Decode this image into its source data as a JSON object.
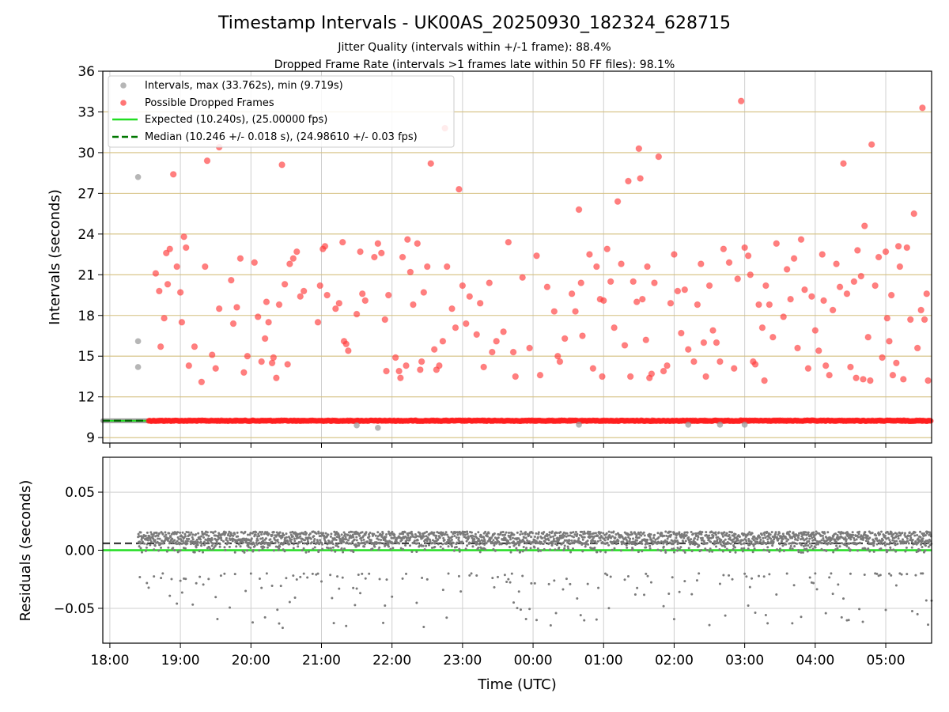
{
  "chart_data": {
    "title": "Timestamp Intervals - UK00AS_20250930_182324_628715",
    "subtitle_1": "Jitter Quality (intervals within +/-1 frame): 88.4%",
    "subtitle_2": "Dropped Frame Rate (intervals >1 frames late within 50 FF files): 98.1%",
    "xlabel": "Time (UTC)",
    "x_ticks": [
      "18:00",
      "19:00",
      "20:00",
      "21:00",
      "22:00",
      "23:00",
      "00:00",
      "01:00",
      "02:00",
      "03:00",
      "04:00",
      "05:00"
    ],
    "x_range_hours": [
      17.9,
      29.65
    ],
    "panels": [
      {
        "name": "intervals",
        "type": "scatter",
        "ylabel": "Intervals (seconds)",
        "ylim": [
          8.6,
          36
        ],
        "y_ticks": [
          "9",
          "12",
          "15",
          "18",
          "21",
          "24",
          "27",
          "30",
          "33",
          "36"
        ],
        "grid": true,
        "legend_position": "top-left",
        "legend": [
          {
            "label": "Intervals, max (33.762s), min (9.719s)",
            "kind": "marker",
            "color": "#9e9e9e"
          },
          {
            "label": "Possible Dropped Frames",
            "kind": "marker",
            "color": "#ff3b3b"
          },
          {
            "label": "Expected (10.240s), (25.00000 fps)",
            "kind": "line",
            "color": "#22dd22"
          },
          {
            "label": "Median (10.246 +/- 0.018 s), (24.98610 +/- 0.03 fps)",
            "kind": "dashed",
            "color": "#007700"
          }
        ],
        "expected_interval": 10.24,
        "median_interval": 10.246,
        "baseline_grey_hours": [
          17.9,
          18.55
        ],
        "baseline_red_hours": [
          18.55,
          29.65
        ],
        "baseline_value": 10.24,
        "gray_outliers": [
          {
            "t": 18.4,
            "y": 28.2
          },
          {
            "t": 18.4,
            "y": 16.1
          },
          {
            "t": 18.4,
            "y": 14.2
          },
          {
            "t": 21.5,
            "y": 9.9
          },
          {
            "t": 21.8,
            "y": 9.72
          },
          {
            "t": 24.65,
            "y": 9.95
          },
          {
            "t": 26.2,
            "y": 9.95
          },
          {
            "t": 26.65,
            "y": 9.95
          },
          {
            "t": 27.0,
            "y": 9.95
          }
        ],
        "red_scatter": [
          {
            "t": 18.65,
            "y": 21.1
          },
          {
            "t": 18.7,
            "y": 19.8
          },
          {
            "t": 18.72,
            "y": 15.7
          },
          {
            "t": 18.77,
            "y": 17.8
          },
          {
            "t": 18.8,
            "y": 22.6
          },
          {
            "t": 18.82,
            "y": 20.3
          },
          {
            "t": 18.85,
            "y": 22.9
          },
          {
            "t": 18.9,
            "y": 28.4
          },
          {
            "t": 18.95,
            "y": 21.6
          },
          {
            "t": 19.0,
            "y": 19.7
          },
          {
            "t": 19.02,
            "y": 17.5
          },
          {
            "t": 19.05,
            "y": 23.8
          },
          {
            "t": 19.08,
            "y": 23.0
          },
          {
            "t": 19.12,
            "y": 14.3
          },
          {
            "t": 19.2,
            "y": 15.7
          },
          {
            "t": 19.3,
            "y": 13.1
          },
          {
            "t": 19.35,
            "y": 21.6
          },
          {
            "t": 19.38,
            "y": 29.4
          },
          {
            "t": 19.45,
            "y": 15.1
          },
          {
            "t": 19.5,
            "y": 14.1
          },
          {
            "t": 19.55,
            "y": 30.4
          },
          {
            "t": 19.55,
            "y": 18.5
          },
          {
            "t": 19.72,
            "y": 20.6
          },
          {
            "t": 19.75,
            "y": 17.4
          },
          {
            "t": 19.8,
            "y": 18.6
          },
          {
            "t": 19.85,
            "y": 22.2
          },
          {
            "t": 19.9,
            "y": 13.8
          },
          {
            "t": 19.95,
            "y": 15.0
          },
          {
            "t": 20.05,
            "y": 21.9
          },
          {
            "t": 20.1,
            "y": 17.9
          },
          {
            "t": 20.15,
            "y": 14.6
          },
          {
            "t": 20.2,
            "y": 16.3
          },
          {
            "t": 20.22,
            "y": 19.0
          },
          {
            "t": 20.25,
            "y": 17.5
          },
          {
            "t": 20.3,
            "y": 14.5
          },
          {
            "t": 20.32,
            "y": 14.9
          },
          {
            "t": 20.36,
            "y": 13.4
          },
          {
            "t": 20.4,
            "y": 18.8
          },
          {
            "t": 20.44,
            "y": 29.1
          },
          {
            "t": 20.48,
            "y": 20.3
          },
          {
            "t": 20.52,
            "y": 14.4
          },
          {
            "t": 20.55,
            "y": 21.8
          },
          {
            "t": 20.6,
            "y": 22.2
          },
          {
            "t": 20.65,
            "y": 22.7
          },
          {
            "t": 20.7,
            "y": 19.4
          },
          {
            "t": 20.75,
            "y": 19.8
          },
          {
            "t": 20.95,
            "y": 17.5
          },
          {
            "t": 20.98,
            "y": 20.2
          },
          {
            "t": 21.02,
            "y": 22.9
          },
          {
            "t": 21.05,
            "y": 23.1
          },
          {
            "t": 21.08,
            "y": 19.5
          },
          {
            "t": 21.2,
            "y": 18.5
          },
          {
            "t": 21.25,
            "y": 18.9
          },
          {
            "t": 21.3,
            "y": 23.4
          },
          {
            "t": 21.32,
            "y": 16.1
          },
          {
            "t": 21.35,
            "y": 15.9
          },
          {
            "t": 21.38,
            "y": 15.4
          },
          {
            "t": 21.5,
            "y": 18.1
          },
          {
            "t": 21.55,
            "y": 22.7
          },
          {
            "t": 21.58,
            "y": 19.6
          },
          {
            "t": 21.62,
            "y": 19.1
          },
          {
            "t": 21.75,
            "y": 22.3
          },
          {
            "t": 21.8,
            "y": 23.3
          },
          {
            "t": 21.85,
            "y": 22.6
          },
          {
            "t": 21.9,
            "y": 17.7
          },
          {
            "t": 21.92,
            "y": 13.9
          },
          {
            "t": 21.95,
            "y": 19.5
          },
          {
            "t": 22.05,
            "y": 14.9
          },
          {
            "t": 22.1,
            "y": 13.9
          },
          {
            "t": 22.12,
            "y": 13.4
          },
          {
            "t": 22.15,
            "y": 22.3
          },
          {
            "t": 22.2,
            "y": 14.3
          },
          {
            "t": 22.22,
            "y": 23.6
          },
          {
            "t": 22.26,
            "y": 21.2
          },
          {
            "t": 22.3,
            "y": 18.8
          },
          {
            "t": 22.36,
            "y": 23.3
          },
          {
            "t": 22.4,
            "y": 14.0
          },
          {
            "t": 22.42,
            "y": 14.6
          },
          {
            "t": 22.45,
            "y": 19.7
          },
          {
            "t": 22.5,
            "y": 21.6
          },
          {
            "t": 22.55,
            "y": 29.2
          },
          {
            "t": 22.6,
            "y": 15.5
          },
          {
            "t": 22.63,
            "y": 14.0
          },
          {
            "t": 22.67,
            "y": 14.3
          },
          {
            "t": 22.72,
            "y": 16.1
          },
          {
            "t": 22.75,
            "y": 31.8
          },
          {
            "t": 22.78,
            "y": 21.6
          },
          {
            "t": 22.85,
            "y": 18.5
          },
          {
            "t": 22.9,
            "y": 17.1
          },
          {
            "t": 22.95,
            "y": 27.3
          },
          {
            "t": 23.0,
            "y": 20.2
          },
          {
            "t": 23.05,
            "y": 17.4
          },
          {
            "t": 23.1,
            "y": 19.4
          },
          {
            "t": 23.2,
            "y": 16.6
          },
          {
            "t": 23.25,
            "y": 18.9
          },
          {
            "t": 23.3,
            "y": 14.2
          },
          {
            "t": 23.38,
            "y": 20.4
          },
          {
            "t": 23.42,
            "y": 15.3
          },
          {
            "t": 23.48,
            "y": 16.1
          },
          {
            "t": 23.58,
            "y": 16.8
          },
          {
            "t": 23.65,
            "y": 23.4
          },
          {
            "t": 23.72,
            "y": 15.3
          },
          {
            "t": 23.75,
            "y": 13.5
          },
          {
            "t": 23.85,
            "y": 20.8
          },
          {
            "t": 23.95,
            "y": 15.6
          },
          {
            "t": 24.05,
            "y": 22.4
          },
          {
            "t": 24.1,
            "y": 13.6
          },
          {
            "t": 24.2,
            "y": 20.1
          },
          {
            "t": 24.3,
            "y": 18.3
          },
          {
            "t": 24.35,
            "y": 15.0
          },
          {
            "t": 24.38,
            "y": 14.6
          },
          {
            "t": 24.45,
            "y": 16.3
          },
          {
            "t": 24.55,
            "y": 19.6
          },
          {
            "t": 24.6,
            "y": 18.3
          },
          {
            "t": 24.65,
            "y": 25.8
          },
          {
            "t": 24.68,
            "y": 20.4
          },
          {
            "t": 24.7,
            "y": 16.5
          },
          {
            "t": 24.8,
            "y": 22.5
          },
          {
            "t": 24.85,
            "y": 14.1
          },
          {
            "t": 24.9,
            "y": 21.6
          },
          {
            "t": 24.95,
            "y": 19.2
          },
          {
            "t": 24.98,
            "y": 13.5
          },
          {
            "t": 25.0,
            "y": 19.1
          },
          {
            "t": 25.05,
            "y": 22.9
          },
          {
            "t": 25.1,
            "y": 20.5
          },
          {
            "t": 25.15,
            "y": 17.1
          },
          {
            "t": 25.2,
            "y": 26.4
          },
          {
            "t": 25.25,
            "y": 21.8
          },
          {
            "t": 25.3,
            "y": 15.8
          },
          {
            "t": 25.35,
            "y": 27.9
          },
          {
            "t": 25.38,
            "y": 13.5
          },
          {
            "t": 25.42,
            "y": 20.5
          },
          {
            "t": 25.47,
            "y": 19.0
          },
          {
            "t": 25.5,
            "y": 30.3
          },
          {
            "t": 25.52,
            "y": 28.1
          },
          {
            "t": 25.55,
            "y": 19.2
          },
          {
            "t": 25.6,
            "y": 16.2
          },
          {
            "t": 25.62,
            "y": 21.6
          },
          {
            "t": 25.65,
            "y": 13.4
          },
          {
            "t": 25.68,
            "y": 13.7
          },
          {
            "t": 25.72,
            "y": 20.4
          },
          {
            "t": 25.78,
            "y": 29.7
          },
          {
            "t": 25.85,
            "y": 13.9
          },
          {
            "t": 25.9,
            "y": 14.3
          },
          {
            "t": 25.95,
            "y": 18.9
          },
          {
            "t": 26.0,
            "y": 22.5
          },
          {
            "t": 26.05,
            "y": 19.8
          },
          {
            "t": 26.1,
            "y": 16.7
          },
          {
            "t": 26.15,
            "y": 19.9
          },
          {
            "t": 26.2,
            "y": 15.5
          },
          {
            "t": 26.28,
            "y": 14.6
          },
          {
            "t": 26.33,
            "y": 18.8
          },
          {
            "t": 26.38,
            "y": 21.8
          },
          {
            "t": 26.42,
            "y": 16.0
          },
          {
            "t": 26.45,
            "y": 13.5
          },
          {
            "t": 26.5,
            "y": 20.2
          },
          {
            "t": 26.55,
            "y": 16.9
          },
          {
            "t": 26.6,
            "y": 16.0
          },
          {
            "t": 26.65,
            "y": 14.6
          },
          {
            "t": 26.7,
            "y": 22.9
          },
          {
            "t": 26.78,
            "y": 21.9
          },
          {
            "t": 26.85,
            "y": 14.1
          },
          {
            "t": 26.9,
            "y": 20.7
          },
          {
            "t": 26.95,
            "y": 33.8
          },
          {
            "t": 27.0,
            "y": 23.0
          },
          {
            "t": 27.05,
            "y": 22.4
          },
          {
            "t": 27.08,
            "y": 21.0
          },
          {
            "t": 27.12,
            "y": 14.6
          },
          {
            "t": 27.15,
            "y": 14.4
          },
          {
            "t": 27.2,
            "y": 18.8
          },
          {
            "t": 27.25,
            "y": 17.1
          },
          {
            "t": 27.28,
            "y": 13.2
          },
          {
            "t": 27.3,
            "y": 20.2
          },
          {
            "t": 27.35,
            "y": 18.8
          },
          {
            "t": 27.4,
            "y": 16.4
          },
          {
            "t": 27.45,
            "y": 23.3
          },
          {
            "t": 27.55,
            "y": 17.9
          },
          {
            "t": 27.6,
            "y": 21.4
          },
          {
            "t": 27.65,
            "y": 19.2
          },
          {
            "t": 27.7,
            "y": 22.2
          },
          {
            "t": 27.75,
            "y": 15.6
          },
          {
            "t": 27.8,
            "y": 23.6
          },
          {
            "t": 27.85,
            "y": 19.9
          },
          {
            "t": 27.9,
            "y": 14.1
          },
          {
            "t": 27.95,
            "y": 19.4
          },
          {
            "t": 28.0,
            "y": 16.9
          },
          {
            "t": 28.05,
            "y": 15.4
          },
          {
            "t": 28.1,
            "y": 22.5
          },
          {
            "t": 28.12,
            "y": 19.1
          },
          {
            "t": 28.15,
            "y": 14.3
          },
          {
            "t": 28.2,
            "y": 13.6
          },
          {
            "t": 28.25,
            "y": 18.4
          },
          {
            "t": 28.3,
            "y": 21.8
          },
          {
            "t": 28.35,
            "y": 20.1
          },
          {
            "t": 28.4,
            "y": 29.2
          },
          {
            "t": 28.45,
            "y": 19.6
          },
          {
            "t": 28.5,
            "y": 14.2
          },
          {
            "t": 28.55,
            "y": 20.5
          },
          {
            "t": 28.58,
            "y": 13.4
          },
          {
            "t": 28.6,
            "y": 22.8
          },
          {
            "t": 28.65,
            "y": 20.9
          },
          {
            "t": 28.68,
            "y": 13.3
          },
          {
            "t": 28.7,
            "y": 24.6
          },
          {
            "t": 28.75,
            "y": 16.4
          },
          {
            "t": 28.78,
            "y": 13.2
          },
          {
            "t": 28.8,
            "y": 30.6
          },
          {
            "t": 28.85,
            "y": 20.2
          },
          {
            "t": 28.9,
            "y": 22.3
          },
          {
            "t": 28.95,
            "y": 14.9
          },
          {
            "t": 29.0,
            "y": 22.7
          },
          {
            "t": 29.02,
            "y": 17.8
          },
          {
            "t": 29.05,
            "y": 16.1
          },
          {
            "t": 29.08,
            "y": 19.5
          },
          {
            "t": 29.1,
            "y": 13.6
          },
          {
            "t": 29.15,
            "y": 14.5
          },
          {
            "t": 29.18,
            "y": 23.1
          },
          {
            "t": 29.2,
            "y": 21.6
          },
          {
            "t": 29.25,
            "y": 13.3
          },
          {
            "t": 29.3,
            "y": 23.0
          },
          {
            "t": 29.35,
            "y": 17.7
          },
          {
            "t": 29.4,
            "y": 25.5
          },
          {
            "t": 29.45,
            "y": 15.6
          },
          {
            "t": 29.5,
            "y": 18.4
          },
          {
            "t": 29.52,
            "y": 33.3
          },
          {
            "t": 29.55,
            "y": 17.7
          },
          {
            "t": 29.58,
            "y": 19.6
          },
          {
            "t": 29.6,
            "y": 13.2
          }
        ]
      },
      {
        "name": "residuals",
        "type": "scatter",
        "ylabel": "Residuals (seconds)",
        "ylim": [
          -0.08,
          0.08
        ],
        "y_ticks": [
          "−0.05",
          "0.00",
          "0.05"
        ],
        "y_tick_values": [
          -0.05,
          0.0,
          0.05
        ],
        "grid": true,
        "expected_residual": 0.0,
        "median_residual": 0.006,
        "dense_band": [
          0.005,
          0.016
        ],
        "sparse_outlier_range": [
          -0.067,
          -0.02
        ],
        "point_color": "#7a7a7a"
      }
    ]
  }
}
